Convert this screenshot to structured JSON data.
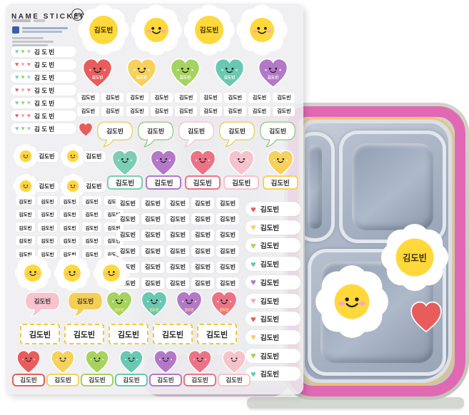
{
  "name": "김도빈",
  "name_spaced": "김 도 빈",
  "header": {
    "title": "NAME STICKER",
    "badge": "A5"
  },
  "palette": {
    "red": "#E85C5C",
    "yellow": "#F6D15C",
    "green": "#A6D35F",
    "teal": "#68C8B1",
    "purple": "#B378C7",
    "mint": "#7DCDB3",
    "blue": "#A9CBE8",
    "pink": "#F4A9C0",
    "rose": "#EC7386",
    "lightpink": "#F6C2CB",
    "salmon": "#F08A8A",
    "bubble_yellow": "#E3C73E",
    "bubble_green": "#84C06C",
    "bubble_pink": "#F4BAC7",
    "bubble_fill_pink": "#F6C3CE",
    "bubble_fill_yellow": "#F5CE55",
    "daisy_yellow": "#FFD83B",
    "dashed_border": "#EFC93F",
    "rim_pink": "#E168B3",
    "rim_accent": "#F0C06E",
    "shell_gray": "#C7CBBE",
    "steel": "#AAB4C6"
  },
  "sheet": {
    "top_daisies": [
      "name",
      "face",
      "name",
      "face"
    ],
    "left_pills": {
      "count": 7,
      "heart_sets": [
        [
          "mint",
          "green",
          "blue"
        ],
        [
          "red",
          "pink",
          "salmon"
        ]
      ]
    },
    "smile_hearts_row": [
      "red",
      "yellow",
      "green",
      "teal",
      "purple"
    ],
    "mini_label_rows": {
      "rows": 2,
      "cols": 9
    },
    "bubble_row": {
      "heart": "red",
      "bubble_borders": [
        "bubble_yellow",
        "bubble_green",
        "bubble_pink",
        "bubble_yellow",
        "bubble_green"
      ]
    },
    "daisy_label_units": 4,
    "heart_tag_row": [
      "mint",
      "purple",
      "rose",
      "lightpink",
      "yellow"
    ],
    "tiny_grid": {
      "rows": 5,
      "cols": 5
    },
    "mid_grid": {
      "rows": 6,
      "cols": 5
    },
    "right_heart_pills": [
      "red",
      "yellow",
      "green",
      "teal",
      "purple",
      "pink",
      "red",
      "yellow",
      "green",
      "teal"
    ],
    "daisy_row": 3,
    "bubble_hearts_row": {
      "bubbles": [
        "bubble_fill_pink",
        "bubble_fill_yellow"
      ],
      "hearts": [
        "green",
        "teal",
        "purple",
        "rose"
      ]
    },
    "dashed_labels": 5,
    "bottom_heart_tags": [
      "red",
      "yellow",
      "green",
      "teal",
      "purple",
      "rose",
      "lightpink"
    ]
  },
  "lunchbox": {
    "stickers": [
      "daisy-name",
      "daisy-face",
      "red-heart"
    ]
  }
}
